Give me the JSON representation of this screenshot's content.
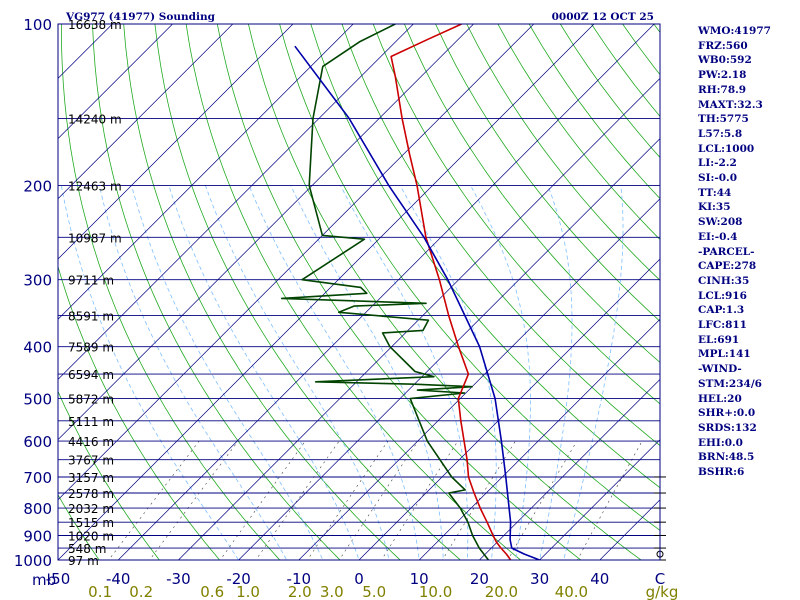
{
  "title": "VG977 (41977) Sounding",
  "valid_time": "0000Z 12 OCT 25",
  "colors": {
    "frame": "#000080",
    "isobar": "#000080",
    "isotherm": "#000080",
    "dry_adiabat": "#22aa22",
    "moist_adiabat": "#7fbfff",
    "mixing_ratio": "#444444",
    "temperature": "#cc0000",
    "dewpoint": "#004400",
    "parcel": "#0000aa",
    "pressure_label": "#000080",
    "temp_label": "#000080",
    "mixing_label": "#808000"
  },
  "indices": [
    "WMO:41977",
    "FRZ:560",
    "WB0:592",
    "PW:2.18",
    "RH:78.9",
    "MAXT:32.3",
    "TH:5775",
    "L57:5.8",
    "LCL:1000",
    "LI:-2.2",
    "SI:-0.0",
    "TT:44",
    "KI:35",
    "SW:208",
    "EI:-0.4",
    "-PARCEL-",
    "CAPE:278",
    "CINH:35",
    "LCL:916",
    "CAP:1.3",
    "LFC:811",
    "EL:691",
    "MPL:141",
    "-WIND-",
    "STM:234/6",
    "HEL:20",
    "SHR+:0.0",
    "SRDS:132",
    "EHI:0.0",
    "BRN:48.5",
    "BSHR:6"
  ],
  "chart_data": {
    "type": "line",
    "title": "VG977 (41977) Sounding",
    "subtitle": "0000Z 12 OCT 25",
    "y_axis": {
      "label": "mb",
      "scale": "log",
      "range": [
        1000,
        100
      ],
      "ticks": [
        100,
        200,
        300,
        400,
        500,
        600,
        700,
        800,
        900,
        1000
      ]
    },
    "x_axis": {
      "label": "C",
      "range": [
        -50,
        50
      ],
      "skew": "45deg",
      "ticks": [
        -50,
        -40,
        -30,
        -20,
        -10,
        0,
        10,
        20,
        30,
        40
      ]
    },
    "height_labels": [
      {
        "p": 100,
        "label": "16638 m"
      },
      {
        "p": 150,
        "label": "14240 m"
      },
      {
        "p": 200,
        "label": "12463 m"
      },
      {
        "p": 250,
        "label": "10987 m"
      },
      {
        "p": 300,
        "label": "9711 m"
      },
      {
        "p": 350,
        "label": "8591 m"
      },
      {
        "p": 400,
        "label": "7589 m"
      },
      {
        "p": 450,
        "label": "6594 m"
      },
      {
        "p": 500,
        "label": "5872 m"
      },
      {
        "p": 550,
        "label": "5111 m"
      },
      {
        "p": 600,
        "label": "4416 m"
      },
      {
        "p": 650,
        "label": "3767 m"
      },
      {
        "p": 700,
        "label": "3157 m"
      },
      {
        "p": 750,
        "label": "2578 m"
      },
      {
        "p": 800,
        "label": "2032 m"
      },
      {
        "p": 850,
        "label": "1515 m"
      },
      {
        "p": 900,
        "label": "1020 m"
      },
      {
        "p": 950,
        "label": "548 m"
      },
      {
        "p": 1000,
        "label": "97 m"
      }
    ],
    "mixing_ratio_labels": [
      {
        "w": 0.1,
        "label": "0.1"
      },
      {
        "w": 0.2,
        "label": "0.2"
      },
      {
        "w": 0.6,
        "label": "0.6"
      },
      {
        "w": 1.0,
        "label": "1.0"
      },
      {
        "w": 2.0,
        "label": "2.0"
      },
      {
        "w": 3.0,
        "label": "3.0"
      },
      {
        "w": 5.0,
        "label": "5.0"
      },
      {
        "w": 10.0,
        "label": "10.0"
      },
      {
        "w": 20.0,
        "label": "20.0"
      },
      {
        "w": 40.0,
        "label": "40.0"
      }
    ],
    "mixing_ratio_unit": "g/kg",
    "series": [
      {
        "key": "temperature",
        "points": [
          {
            "p": 1000,
            "t": 25.2
          },
          {
            "p": 975,
            "t": 23.5
          },
          {
            "p": 950,
            "t": 21.6
          },
          {
            "p": 925,
            "t": 19.8
          },
          {
            "p": 900,
            "t": 18.2
          },
          {
            "p": 850,
            "t": 15.0
          },
          {
            "p": 800,
            "t": 11.5
          },
          {
            "p": 750,
            "t": 8.0
          },
          {
            "p": 700,
            "t": 4.4
          },
          {
            "p": 650,
            "t": 1.3
          },
          {
            "p": 600,
            "t": -2.3
          },
          {
            "p": 550,
            "t": -6.2
          },
          {
            "p": 500,
            "t": -10.3
          },
          {
            "p": 450,
            "t": -12.7
          },
          {
            "p": 400,
            "t": -18.9
          },
          {
            "p": 350,
            "t": -25.7
          },
          {
            "p": 300,
            "t": -33.2
          },
          {
            "p": 250,
            "t": -42.5
          },
          {
            "p": 200,
            "t": -52.6
          },
          {
            "p": 175,
            "t": -59.0
          },
          {
            "p": 150,
            "t": -66.2
          },
          {
            "p": 125,
            "t": -74.4
          },
          {
            "p": 115,
            "t": -78.3
          },
          {
            "p": 107,
            "t": -75.1
          },
          {
            "p": 100,
            "t": -72.0
          }
        ]
      },
      {
        "key": "dewpoint",
        "points": [
          {
            "p": 1000,
            "t": 21.5
          },
          {
            "p": 950,
            "t": 18.0
          },
          {
            "p": 900,
            "t": 14.8
          },
          {
            "p": 850,
            "t": 11.8
          },
          {
            "p": 800,
            "t": 8.2
          },
          {
            "p": 750,
            "t": 3.8
          },
          {
            "p": 740,
            "t": 6.0
          },
          {
            "p": 700,
            "t": 1.6
          },
          {
            "p": 600,
            "t": -8.4
          },
          {
            "p": 500,
            "t": -18.3
          },
          {
            "p": 488,
            "t": -10.2
          },
          {
            "p": 482,
            "t": -18.5
          },
          {
            "p": 475,
            "t": -10.0
          },
          {
            "p": 470,
            "t": -20.0
          },
          {
            "p": 465,
            "t": -36.8
          },
          {
            "p": 455,
            "t": -18.0
          },
          {
            "p": 445,
            "t": -22.0
          },
          {
            "p": 400,
            "t": -30.3
          },
          {
            "p": 377,
            "t": -33.8
          },
          {
            "p": 373,
            "t": -27.5
          },
          {
            "p": 357,
            "t": -28.3
          },
          {
            "p": 345,
            "t": -44.5
          },
          {
            "p": 336,
            "t": -43.0
          },
          {
            "p": 332,
            "t": -31.5
          },
          {
            "p": 325,
            "t": -56.3
          },
          {
            "p": 318,
            "t": -43.0
          },
          {
            "p": 310,
            "t": -45.0
          },
          {
            "p": 300,
            "t": -56.0
          },
          {
            "p": 252,
            "t": -52.4
          },
          {
            "p": 248,
            "t": -60.0
          },
          {
            "p": 200,
            "t": -70.5
          },
          {
            "p": 150,
            "t": -81.0
          },
          {
            "p": 120,
            "t": -88.0
          },
          {
            "p": 108,
            "t": -86.0
          },
          {
            "p": 100,
            "t": -83.0
          }
        ]
      },
      {
        "key": "parcel",
        "points": [
          {
            "p": 1000,
            "t": 30.0
          },
          {
            "p": 975,
            "t": 26.5
          },
          {
            "p": 950,
            "t": 23.4
          },
          {
            "p": 916,
            "t": 21.7
          },
          {
            "p": 850,
            "t": 18.9
          },
          {
            "p": 800,
            "t": 16.3
          },
          {
            "p": 700,
            "t": 10.6
          },
          {
            "p": 600,
            "t": 3.9
          },
          {
            "p": 500,
            "t": -4.2
          },
          {
            "p": 400,
            "t": -15.4
          },
          {
            "p": 350,
            "t": -23.0
          },
          {
            "p": 300,
            "t": -31.8
          },
          {
            "p": 250,
            "t": -42.8
          },
          {
            "p": 200,
            "t": -57.3
          },
          {
            "p": 150,
            "t": -75.0
          },
          {
            "p": 110,
            "t": -96.0
          }
        ]
      }
    ]
  }
}
